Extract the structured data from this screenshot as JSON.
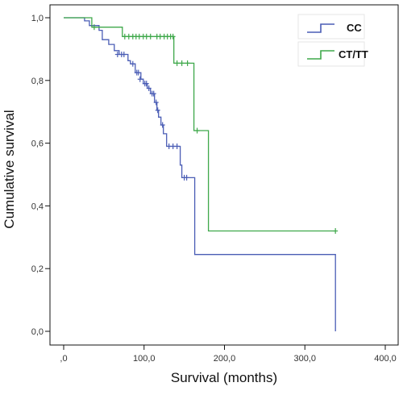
{
  "chart_data": {
    "type": "line",
    "title": "",
    "xlabel": "Survival (months)",
    "ylabel": "Cumulative survival",
    "xlim": [
      0,
      400
    ],
    "ylim": [
      0,
      1
    ],
    "x_ticks": [
      0,
      100,
      200,
      300,
      400
    ],
    "x_tick_labels": [
      ",0",
      "100,0",
      "200,0",
      "300,0",
      "400,0"
    ],
    "y_ticks": [
      0,
      0.2,
      0.4,
      0.6,
      0.8,
      1.0
    ],
    "y_tick_labels": [
      "0,0",
      "0,2",
      "0,4",
      "0,6",
      "0,8",
      "1,0"
    ],
    "grid": false,
    "legend_position": "top-right",
    "series": [
      {
        "name": "CC",
        "color": "#4a5db5",
        "steps": [
          [
            0,
            1.0
          ],
          [
            26,
            0.99
          ],
          [
            32,
            0.975
          ],
          [
            44,
            0.96
          ],
          [
            48,
            0.93
          ],
          [
            56,
            0.915
          ],
          [
            63,
            0.895
          ],
          [
            69,
            0.883
          ],
          [
            80,
            0.863
          ],
          [
            83,
            0.853
          ],
          [
            89,
            0.825
          ],
          [
            96,
            0.804
          ],
          [
            99,
            0.79
          ],
          [
            104,
            0.775
          ],
          [
            108,
            0.758
          ],
          [
            113,
            0.73
          ],
          [
            116,
            0.705
          ],
          [
            118,
            0.683
          ],
          [
            121,
            0.658
          ],
          [
            124,
            0.63
          ],
          [
            128,
            0.59
          ],
          [
            145,
            0.53
          ],
          [
            147,
            0.49
          ],
          [
            163,
            0.245
          ],
          [
            338,
            0.245
          ],
          [
            338,
            0.0
          ]
        ],
        "censored": [
          [
            67,
            0.883
          ],
          [
            72,
            0.883
          ],
          [
            75,
            0.883
          ],
          [
            86,
            0.853
          ],
          [
            91,
            0.825
          ],
          [
            93,
            0.825
          ],
          [
            95,
            0.804
          ],
          [
            101,
            0.79
          ],
          [
            103,
            0.79
          ],
          [
            106,
            0.775
          ],
          [
            110,
            0.758
          ],
          [
            112,
            0.758
          ],
          [
            115,
            0.73
          ],
          [
            117,
            0.705
          ],
          [
            123,
            0.658
          ],
          [
            131,
            0.59
          ],
          [
            136,
            0.59
          ],
          [
            141,
            0.59
          ],
          [
            150,
            0.49
          ],
          [
            153,
            0.49
          ]
        ]
      },
      {
        "name": "CT/TT",
        "color": "#3ea84a",
        "steps": [
          [
            0,
            1.0
          ],
          [
            35,
            0.97
          ],
          [
            73,
            0.94
          ],
          [
            137,
            0.855
          ],
          [
            162,
            0.64
          ],
          [
            180,
            0.32
          ],
          [
            338,
            0.32
          ]
        ],
        "censored": [
          [
            38,
            0.97
          ],
          [
            76,
            0.94
          ],
          [
            81,
            0.94
          ],
          [
            86,
            0.94
          ],
          [
            90,
            0.94
          ],
          [
            94,
            0.94
          ],
          [
            99,
            0.94
          ],
          [
            103,
            0.94
          ],
          [
            108,
            0.94
          ],
          [
            116,
            0.94
          ],
          [
            120,
            0.94
          ],
          [
            125,
            0.94
          ],
          [
            129,
            0.94
          ],
          [
            133,
            0.94
          ],
          [
            136,
            0.94
          ],
          [
            141,
            0.855
          ],
          [
            147,
            0.855
          ],
          [
            154,
            0.855
          ],
          [
            166,
            0.64
          ],
          [
            338,
            0.32
          ]
        ]
      }
    ]
  }
}
